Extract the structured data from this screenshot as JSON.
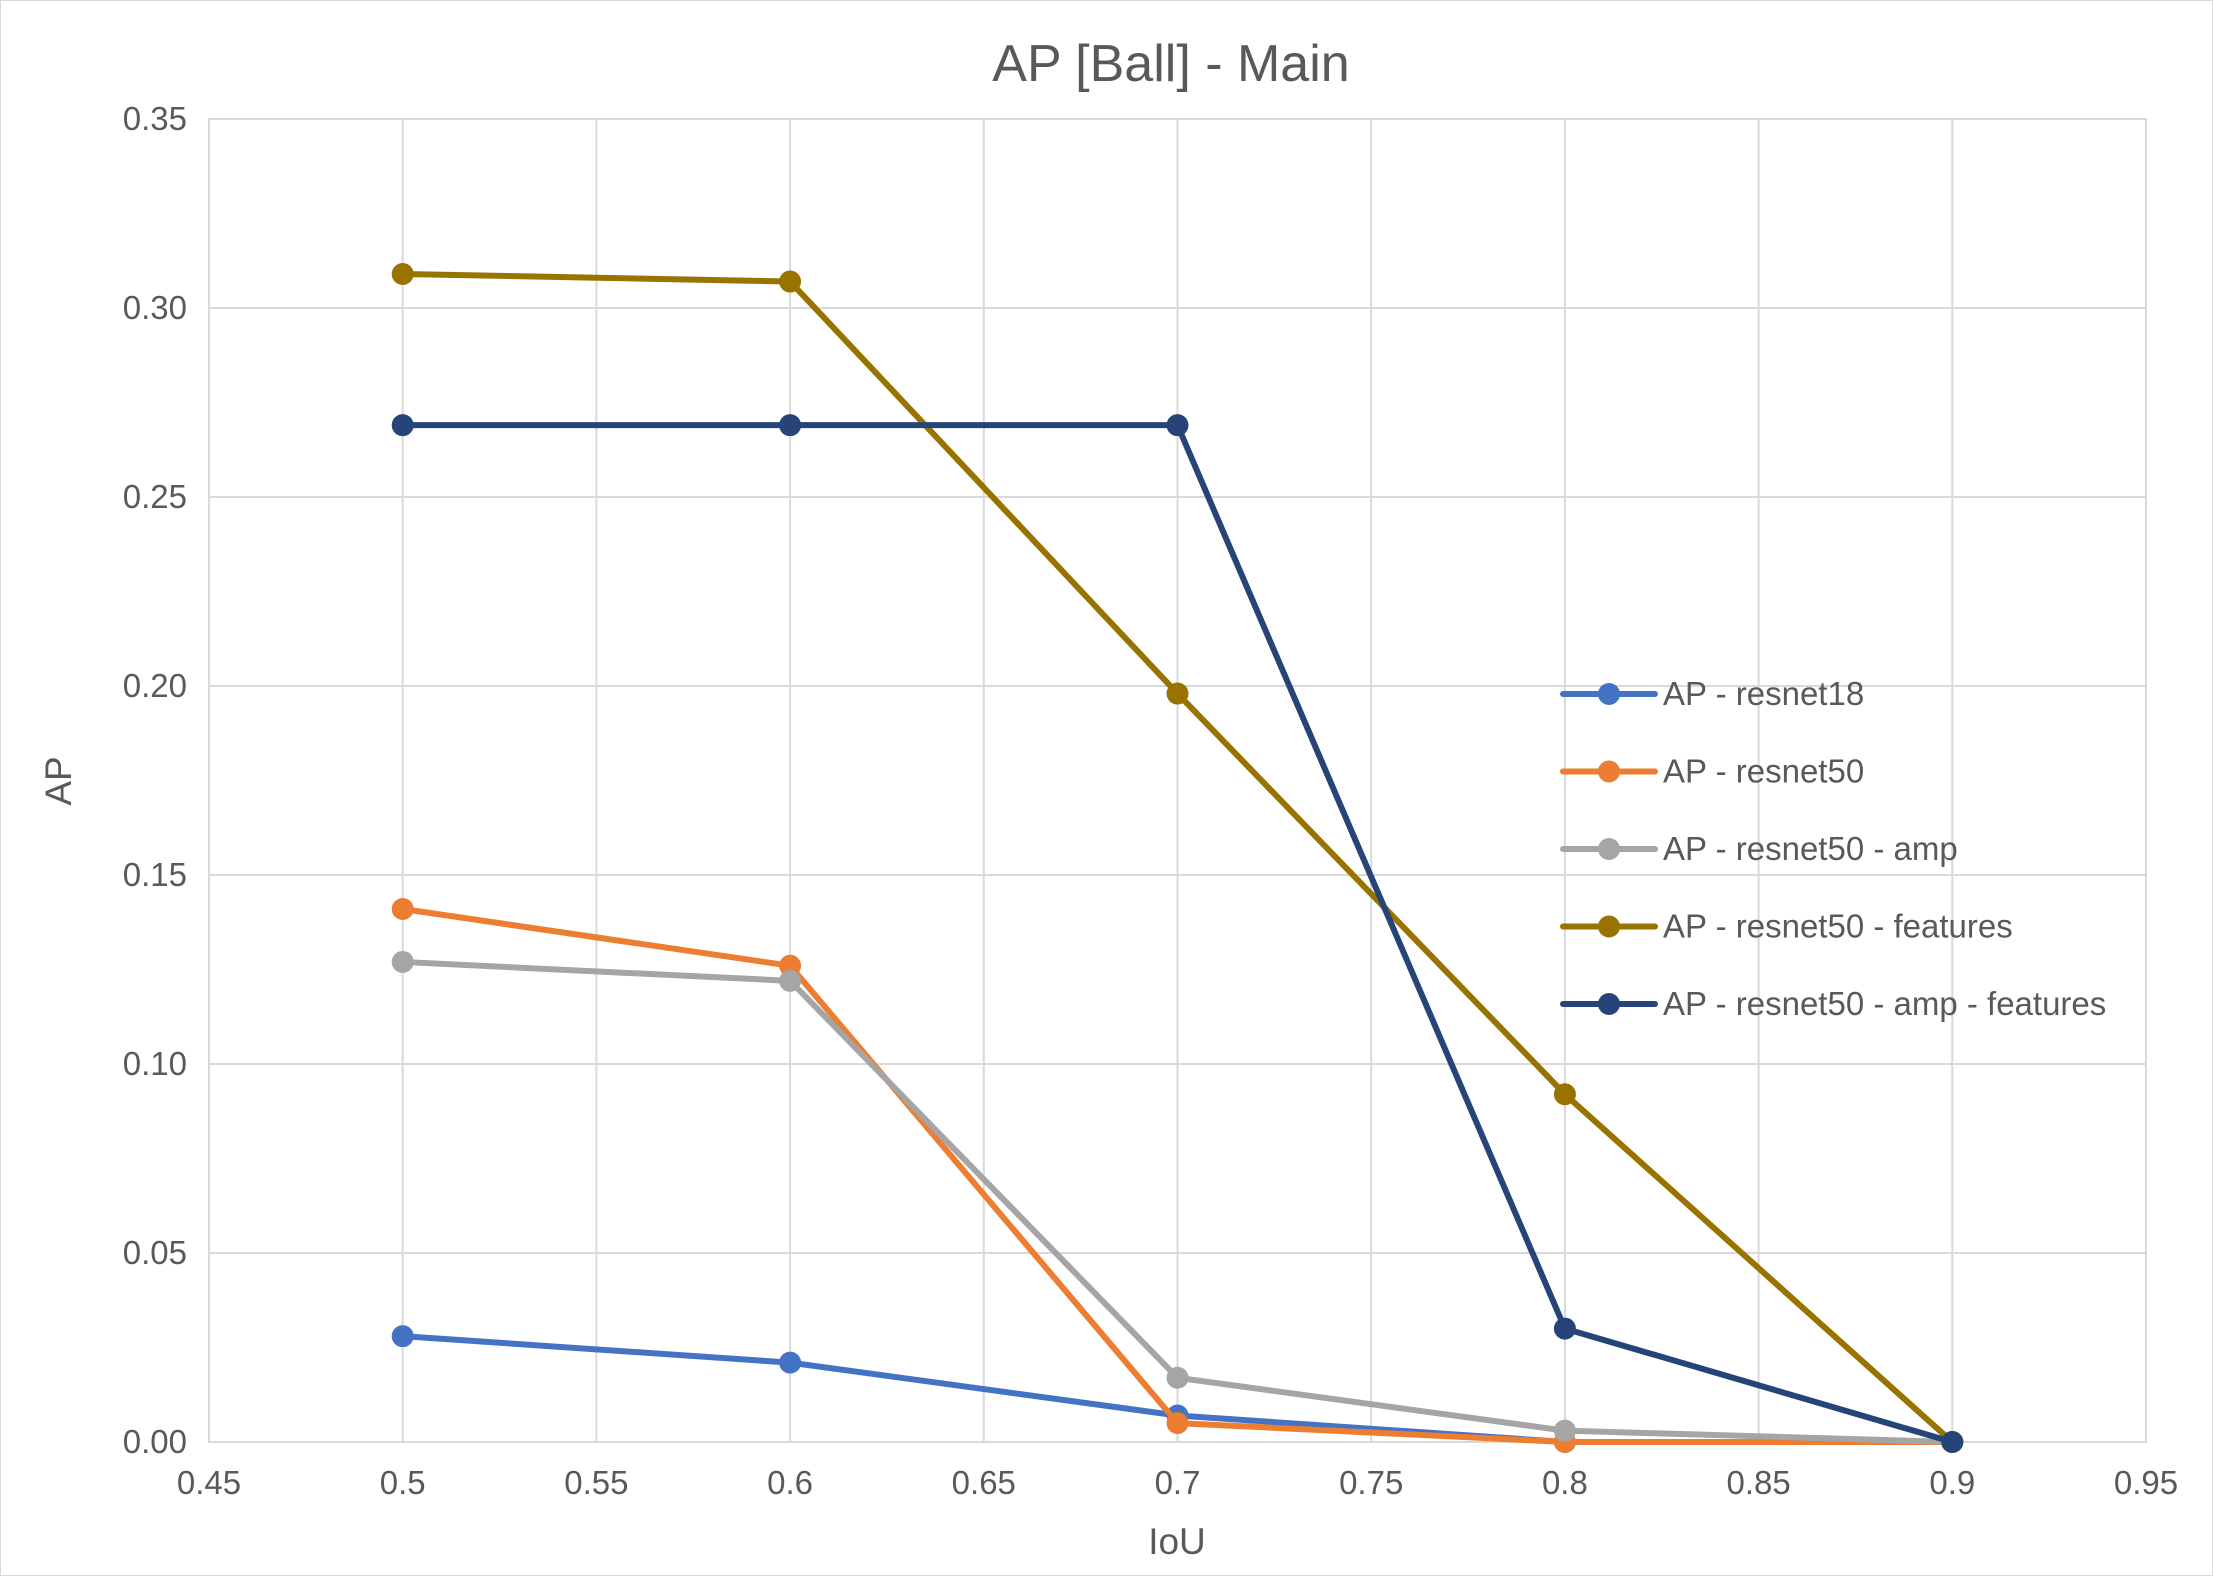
{
  "chart_data": {
    "type": "line",
    "title": "AP [Ball] - Main",
    "xlabel": "IoU",
    "ylabel": "AP",
    "xlim": [
      0.45,
      0.95
    ],
    "ylim": [
      0,
      0.35
    ],
    "x_ticks": [
      "0.45",
      "0.5",
      "0.55",
      "0.6",
      "0.65",
      "0.7",
      "0.75",
      "0.8",
      "0.85",
      "0.9",
      "0.95"
    ],
    "y_ticks": [
      "0.00",
      "0.05",
      "0.10",
      "0.15",
      "0.20",
      "0.25",
      "0.30",
      "0.35"
    ],
    "grid": true,
    "legend_position": "right",
    "x": [
      0.5,
      0.6,
      0.7,
      0.8,
      0.9
    ],
    "series": [
      {
        "name": "AP - resnet18",
        "color": "#4472c4",
        "values": [
          0.028,
          0.021,
          0.007,
          0.0,
          0.0
        ]
      },
      {
        "name": "AP - resnet50",
        "color": "#ed7d31",
        "values": [
          0.141,
          0.126,
          0.005,
          0.0,
          0.0
        ]
      },
      {
        "name": "AP - resnet50 - amp",
        "color": "#a5a5a5",
        "values": [
          0.127,
          0.122,
          0.017,
          0.003,
          0.0
        ]
      },
      {
        "name": "AP - resnet50 - features",
        "color": "#997300",
        "values": [
          0.309,
          0.307,
          0.198,
          0.092,
          0.0
        ]
      },
      {
        "name": "AP - resnet50 - amp - features",
        "color": "#264478",
        "values": [
          0.269,
          0.269,
          0.269,
          0.03,
          0.0
        ]
      }
    ]
  }
}
